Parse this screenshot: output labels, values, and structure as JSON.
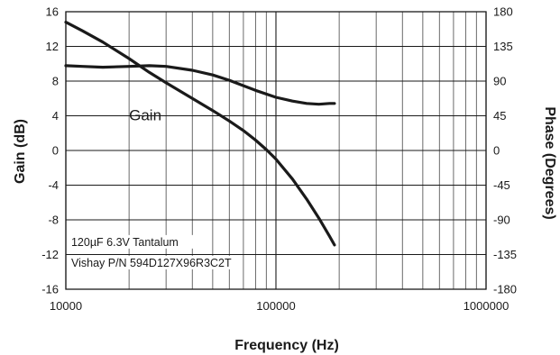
{
  "chart_data": {
    "type": "line",
    "title": "",
    "xlabel": "Frequency (Hz)",
    "ylabel": "Gain (dB)",
    "y2label": "Phase (Degrees)",
    "x_scale": "log",
    "xlim": [
      10000,
      1000000
    ],
    "ylim": [
      -16,
      16
    ],
    "y2lim": [
      -180,
      180
    ],
    "grid": true,
    "x_ticks": [
      "10000",
      "100000",
      "1000000"
    ],
    "y_ticks": [
      "16",
      "12",
      "8",
      "4",
      "0",
      "-4",
      "-8",
      "-12",
      "-16"
    ],
    "y2_ticks": [
      "180",
      "135",
      "90",
      "45",
      "0",
      "-45",
      "-90",
      "-135",
      "-180"
    ],
    "series": [
      {
        "name": "Gain",
        "axis": "left",
        "x": [
          10000,
          12000,
          15000,
          20000,
          25000,
          30000,
          40000,
          50000,
          60000,
          70000,
          80000,
          90000,
          100000,
          120000,
          140000,
          160000,
          180000,
          190000
        ],
        "y": [
          14.8,
          13.8,
          12.5,
          10.6,
          9.0,
          7.8,
          6.0,
          4.6,
          3.4,
          2.3,
          1.2,
          0.1,
          -1.0,
          -3.3,
          -5.6,
          -7.8,
          -9.9,
          -10.9
        ]
      },
      {
        "name": "Phase",
        "axis": "right",
        "x": [
          10000,
          12000,
          15000,
          20000,
          25000,
          30000,
          40000,
          50000,
          60000,
          70000,
          80000,
          100000,
          120000,
          140000,
          160000,
          180000,
          190000
        ],
        "y": [
          110,
          109,
          108,
          109,
          110,
          109,
          104,
          98,
          91,
          84,
          78,
          69,
          64,
          61,
          60,
          61,
          61
        ]
      }
    ],
    "annotations": [
      {
        "text": "Gain",
        "x": 20000,
        "y": 3.5
      },
      {
        "text": "120µF 6.3V Tantalum",
        "x": 10300,
        "y": -11.0
      },
      {
        "text": "Vishay P/N 594D127X96R3C2T",
        "x": 10300,
        "y": -13.4
      }
    ]
  }
}
